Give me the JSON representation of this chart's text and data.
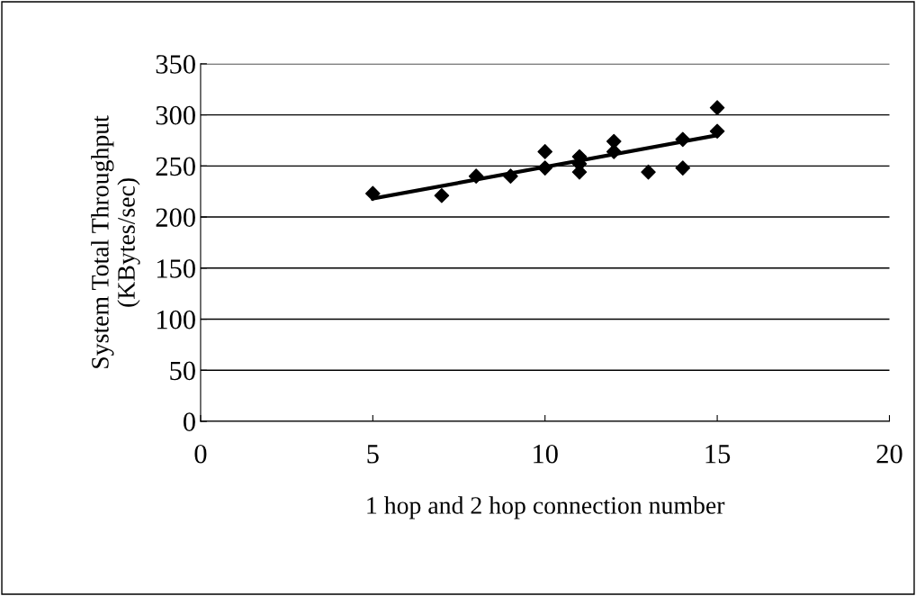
{
  "chart_data": {
    "type": "scatter",
    "xlabel": "1 hop and 2 hop connection number",
    "ylabel": "System Total Throughput\n(KBytes/sec)",
    "series": [
      {
        "marker": "diamond",
        "color": "#000000",
        "x": [
          5,
          7,
          8,
          9,
          10,
          10,
          11,
          11,
          11,
          12,
          12,
          13,
          14,
          14,
          15,
          15
        ],
        "values": [
          223,
          221,
          240,
          240,
          264,
          248,
          259,
          252,
          244,
          274,
          264,
          244,
          276,
          248,
          307,
          284
        ]
      },
      {
        "type": "line",
        "marker": "none",
        "color": "#000000",
        "x": [
          5,
          15
        ],
        "values": [
          218,
          280
        ]
      }
    ],
    "xlim": [
      0,
      20
    ],
    "xticks": [
      0,
      5,
      10,
      15,
      20
    ],
    "ylim": [
      0,
      350
    ],
    "yticks": [
      0,
      50,
      100,
      150,
      200,
      250,
      300,
      350
    ],
    "grid": "y"
  }
}
